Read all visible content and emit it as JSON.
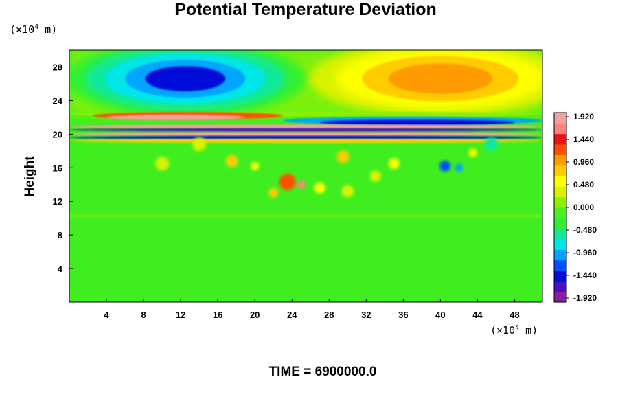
{
  "chart_data": {
    "type": "heatmap",
    "title": "Potential Temperature Deviation",
    "ylabel": "Height",
    "x_unit": {
      "prefix": "(×10",
      "exp": "4",
      "suffix": " m)"
    },
    "y_unit": {
      "prefix": "(×10",
      "exp": "4",
      "suffix": " m)"
    },
    "xlim": [
      0,
      51
    ],
    "ylim": [
      0,
      30
    ],
    "xticks": [
      "4",
      "8",
      "12",
      "16",
      "20",
      "24",
      "28",
      "32",
      "36",
      "40",
      "44",
      "48"
    ],
    "yticks": [
      "4",
      "8",
      "12",
      "16",
      "20",
      "24",
      "28"
    ],
    "colorbar": {
      "labels": [
        "1.920",
        "1.440",
        "0.960",
        "0.480",
        "0.000",
        "-0.480",
        "-0.960",
        "-1.440",
        "-1.920"
      ],
      "vmin": -2.16,
      "vmax": 2.16,
      "colors": [
        "#8a1f9e",
        "#4a0fc2",
        "#0010d8",
        "#0050ff",
        "#00a6ff",
        "#00e6e6",
        "#10e8a0",
        "#30f030",
        "#50f020",
        "#8cf000",
        "#d8f200",
        "#ffff00",
        "#ffcc00",
        "#ff9a00",
        "#ff5000",
        "#f01010",
        "#ff8080",
        "#f4a0a0"
      ]
    },
    "features": [
      {
        "label": "cold anomaly",
        "x": 12.5,
        "y": 26.5,
        "value": -1.7
      },
      {
        "label": "warm anomaly",
        "x": 40,
        "y": 26.5,
        "value": 1.15
      },
      {
        "label": "warm band",
        "x": 13,
        "y": 22,
        "value": 1.9
      },
      {
        "label": "cold band",
        "x": 37,
        "y": 21.5,
        "value": -1.6
      }
    ],
    "footer": "TIME = 6900000.0"
  }
}
